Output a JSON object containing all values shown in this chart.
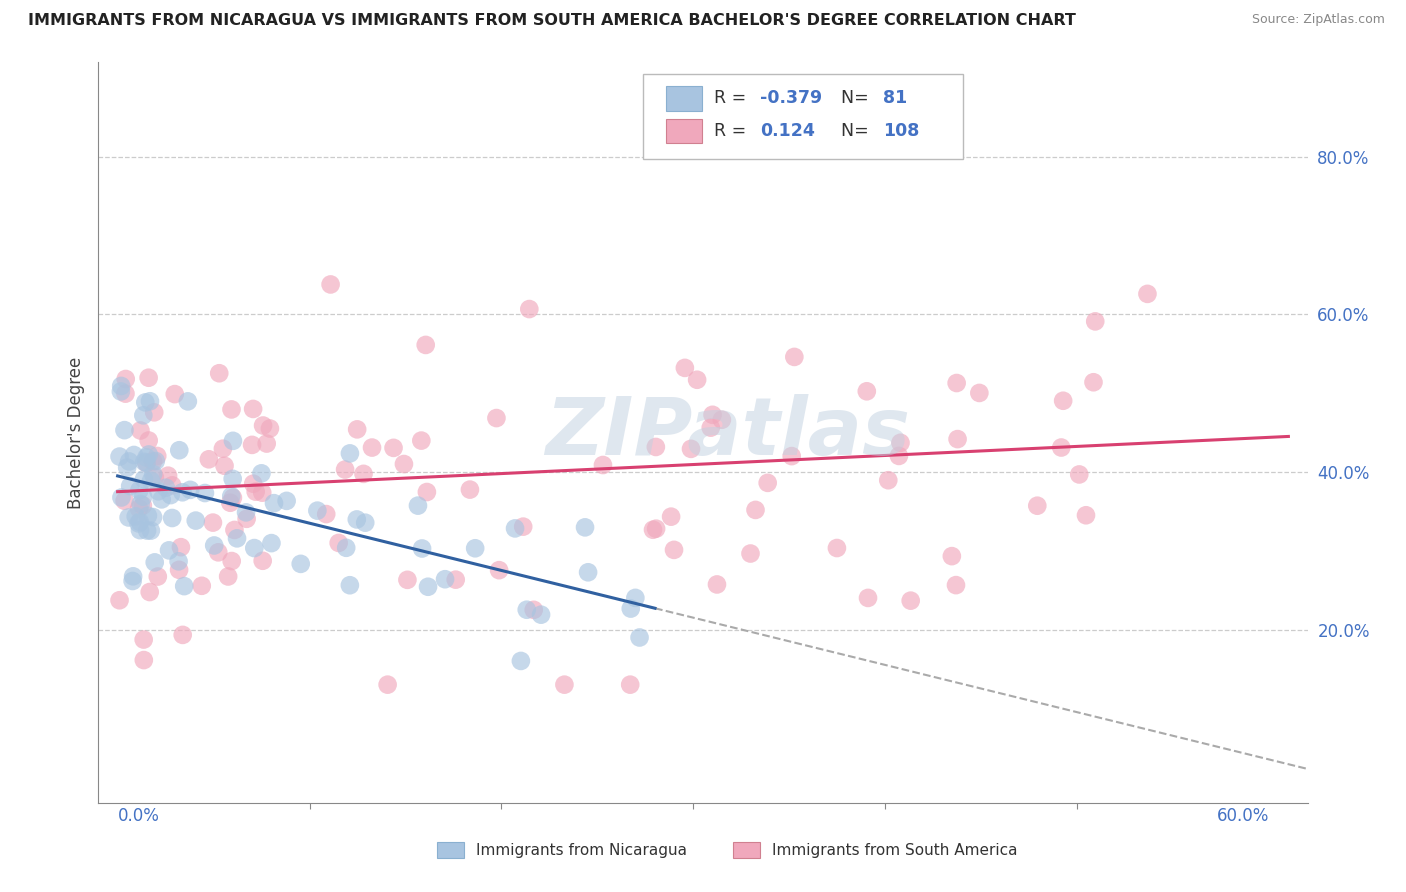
{
  "title": "IMMIGRANTS FROM NICARAGUA VS IMMIGRANTS FROM SOUTH AMERICA BACHELOR'S DEGREE CORRELATION CHART",
  "source": "Source: ZipAtlas.com",
  "ylabel": "Bachelor's Degree",
  "xlim": [
    0.0,
    0.6
  ],
  "ylim": [
    0.0,
    0.9
  ],
  "color_nicaragua": "#a8c4e0",
  "color_south_america": "#f0a8bc",
  "line_color_nicaragua": "#3060a0",
  "line_color_south_america": "#d84070",
  "watermark": "ZIPatlas",
  "r_nicaragua": -0.379,
  "n_nicaragua": 81,
  "r_south_america": 0.124,
  "n_south_america": 108,
  "nic_intercept": 0.395,
  "nic_slope": -0.6,
  "sa_intercept": 0.375,
  "sa_slope": 0.115
}
